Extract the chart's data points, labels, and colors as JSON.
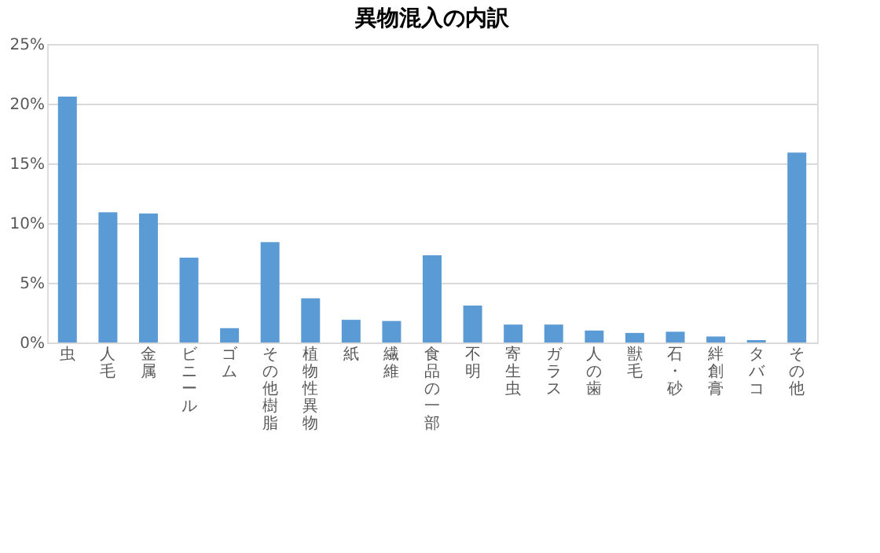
{
  "chart_data": {
    "type": "bar",
    "title": "異物混入の内訳",
    "categories": [
      "虫",
      "人毛",
      "金属",
      "ビニール",
      "ゴム",
      "その他樹脂",
      "植物性異物",
      "紙",
      "繊維",
      "食品の一部",
      "不明",
      "寄生虫",
      "ガラス",
      "人の歯",
      "獣毛",
      "石・砂",
      "絆創膏",
      "タバコ",
      "その他"
    ],
    "values": [
      20.6,
      10.9,
      10.8,
      7.1,
      1.2,
      8.4,
      3.7,
      1.9,
      1.8,
      7.3,
      3.1,
      1.5,
      1.5,
      1.0,
      0.8,
      0.9,
      0.5,
      0.2,
      15.9
    ],
    "color": "#5b9bd5",
    "ylim": [
      0,
      25
    ],
    "yticks": [
      {
        "value": 0,
        "label": "0%"
      },
      {
        "value": 5,
        "label": "5%"
      },
      {
        "value": 10,
        "label": "10%"
      },
      {
        "value": 15,
        "label": "15%"
      },
      {
        "value": 20,
        "label": "20%"
      },
      {
        "value": 25,
        "label": "25%"
      }
    ],
    "grid": "y"
  }
}
